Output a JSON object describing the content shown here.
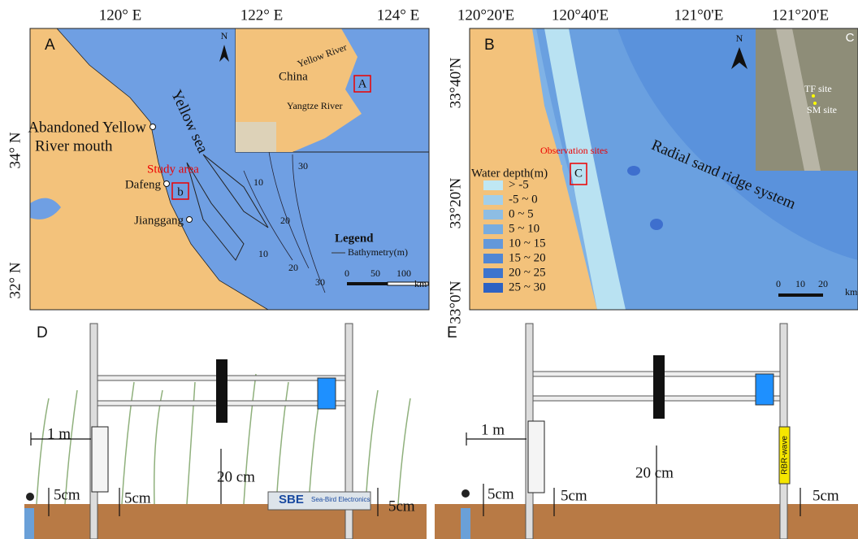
{
  "panel_a": {
    "label": "A",
    "lon_labels": [
      "120° E",
      "122° E",
      "124° E"
    ],
    "lat_labels": [
      "34° N",
      "32° N"
    ],
    "places": [
      "Abandoned Yellow",
      "River mouth",
      "Dafeng",
      "Jianggang"
    ],
    "sea": "Yellow sea",
    "study_area": "Study area",
    "box_label": "b",
    "contours": [
      "10",
      "20",
      "30",
      "10",
      "20",
      "30"
    ],
    "legend_title": "Legend",
    "legend_item": "Bathymetry(m)",
    "scale_ticks": [
      "0",
      "50",
      "100"
    ],
    "scale_unit": "km",
    "inset": {
      "north": "N",
      "river_1": "Yellow River",
      "country": "China",
      "box_label": "A",
      "river_2": "Yangtze River"
    }
  },
  "panel_b": {
    "label": "B",
    "lon_labels": [
      "120°20'E",
      "120°40'E",
      "121°0'E",
      "121°20'E"
    ],
    "lat_labels": [
      "33°40'N",
      "33°20'N",
      "33°0'N"
    ],
    "north": "N",
    "observation": "Observation sites",
    "box_label": "C",
    "ridge": "Radial sand ridge system",
    "legend_title": "Water depth(m)",
    "legend_items": [
      "> -5",
      "-5 ~ 0",
      "0 ~ 5",
      "5 ~ 10",
      "10 ~ 15",
      "15 ~ 20",
      "20 ~ 25",
      "25 ~ 30"
    ],
    "scale_ticks": [
      "0",
      "10",
      "20"
    ],
    "scale_unit": "km",
    "inset": {
      "label": "C",
      "site_1": "TF site",
      "site_2": "SM site"
    }
  },
  "panel_d": {
    "label": "D",
    "distance": "1 m",
    "heights": [
      "5cm",
      "5cm",
      "20 cm",
      "5cm"
    ],
    "sbe_logo": "SBE",
    "sbe_name": "Sea-Bird Electronics"
  },
  "panel_e": {
    "label": "E",
    "distance": "1 m",
    "heights": [
      "5cm",
      "5cm",
      "20 cm",
      "5cm"
    ],
    "device": "RBR-wave"
  }
}
